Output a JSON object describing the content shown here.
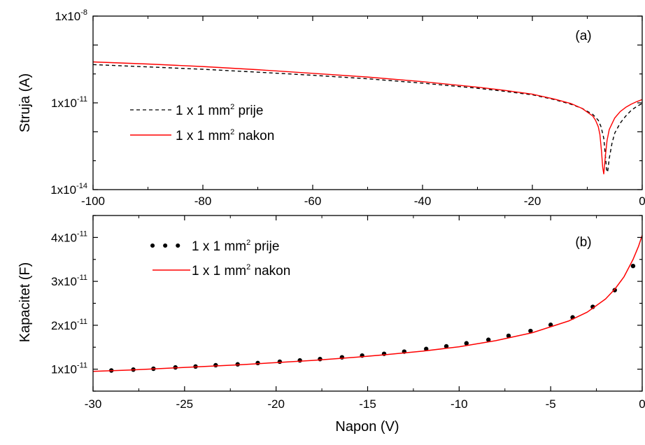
{
  "chart_data": [
    {
      "id": "a",
      "type": "line",
      "panel_label": "(a)",
      "ylabel": "Struja (A)",
      "yscale": "log",
      "xlim": [
        -100,
        0
      ],
      "ylim": [
        1e-14,
        1e-08
      ],
      "x_ticks": [
        "-100",
        "-80",
        "-60",
        "-40",
        "-20",
        "0"
      ],
      "y_ticks": [
        {
          "base": "1x10",
          "exp": "-8",
          "value": 1e-08
        },
        {
          "base": "1x10",
          "exp": "-11",
          "value": 1e-11
        },
        {
          "base": "1x10",
          "exp": "-14",
          "value": 1e-14
        }
      ],
      "legend_position": "left-middle",
      "series": [
        {
          "name_pre": "1 x 1 mm",
          "name_sup": "2",
          "name_post": " prije",
          "color": "#000000",
          "style": "dashed",
          "x": [
            -100,
            -90,
            -80,
            -70,
            -60,
            -50,
            -40,
            -30,
            -25,
            -20,
            -16,
            -13,
            -11,
            -9,
            -8,
            -7.5,
            -7,
            -6.7,
            -6.5,
            -6.3,
            -6,
            -5.5,
            -5,
            -4,
            -3,
            -2,
            -1,
            0
          ],
          "y": [
            2.1e-10,
            1.75e-10,
            1.45e-10,
            1.15e-10,
            9e-11,
            6.8e-11,
            4.8e-11,
            3.2e-11,
            2.5e-11,
            1.9e-11,
            1.3e-11,
            9e-12,
            6.5e-12,
            4e-12,
            2.5e-12,
            1.5e-12,
            6e-13,
            1.5e-13,
            5e-14,
            4e-14,
            1.2e-13,
            4e-13,
            9e-13,
            2e-12,
            3.5e-12,
            5.5e-12,
            7.5e-12,
            9.5e-12
          ]
        },
        {
          "name_pre": "1 x 1 mm",
          "name_sup": "2",
          "name_post": " nakon",
          "color": "#ff0000",
          "style": "solid",
          "x": [
            -100,
            -90,
            -80,
            -70,
            -60,
            -50,
            -40,
            -30,
            -25,
            -20,
            -16,
            -13,
            -11,
            -9,
            -8.5,
            -8,
            -7.7,
            -7.4,
            -7.2,
            -7,
            -6.7,
            -6.4,
            -6,
            -5,
            -4,
            -3,
            -2,
            -1,
            0
          ],
          "y": [
            2.6e-10,
            2.2e-10,
            1.8e-10,
            1.4e-10,
            1.05e-10,
            7.8e-11,
            5.4e-11,
            3.5e-11,
            2.7e-11,
            2e-11,
            1.35e-11,
            9.5e-12,
            6.5e-12,
            3.5e-12,
            2.5e-12,
            1.5e-12,
            8e-13,
            2e-13,
            6e-14,
            3.5e-14,
            1.5e-13,
            5e-13,
            1.2e-12,
            3e-12,
            5e-12,
            7e-12,
            9e-12,
            1.1e-11,
            1.3e-11
          ]
        }
      ]
    },
    {
      "id": "b",
      "type": "line",
      "panel_label": "(b)",
      "xlabel": "Napon (V)",
      "ylabel": "Kapacitet (F)",
      "xlim": [
        -30,
        0
      ],
      "ylim_label": "approx. 0.5e-11 to 4.5e-11",
      "x_ticks": [
        "-30",
        "-25",
        "-20",
        "-15",
        "-10",
        "-5",
        "0"
      ],
      "y_ticks": [
        {
          "base": "1x10",
          "exp": "-11",
          "value": 1e-11
        },
        {
          "base": "2x10",
          "exp": "-11",
          "value": 2e-11
        },
        {
          "base": "3x10",
          "exp": "-11",
          "value": 3e-11
        },
        {
          "base": "4x10",
          "exp": "-11",
          "value": 4e-11
        }
      ],
      "legend_position": "top-left",
      "series": [
        {
          "name_pre": "1 x 1 mm",
          "name_sup": "2",
          "name_post": " prije",
          "color": "#000000",
          "style": "dots",
          "x": [
            -29,
            -27.8,
            -26.7,
            -25.5,
            -24.4,
            -23.3,
            -22.1,
            -21,
            -19.8,
            -18.7,
            -17.6,
            -16.4,
            -15.3,
            -14.1,
            -13,
            -11.8,
            -10.7,
            -9.6,
            -8.4,
            -7.3,
            -6.1,
            -5,
            -3.8,
            -2.7,
            -1.5,
            -0.5
          ],
          "y": [
            9.7e-12,
            9.9e-12,
            1.01e-11,
            1.04e-11,
            1.06e-11,
            1.09e-11,
            1.11e-11,
            1.14e-11,
            1.17e-11,
            1.2e-11,
            1.23e-11,
            1.27e-11,
            1.31e-11,
            1.35e-11,
            1.4e-11,
            1.46e-11,
            1.52e-11,
            1.59e-11,
            1.67e-11,
            1.76e-11,
            1.87e-11,
            2.01e-11,
            2.18e-11,
            2.42e-11,
            2.8e-11,
            3.35e-11
          ]
        },
        {
          "name_pre": "1 x 1 mm",
          "name_sup": "2",
          "name_post": " nakon",
          "color": "#ff0000",
          "style": "solid",
          "x": [
            -30,
            -28,
            -26,
            -24,
            -22,
            -20,
            -18,
            -16,
            -14,
            -12,
            -10,
            -8,
            -6,
            -4,
            -3,
            -2,
            -1.5,
            -1,
            -0.5,
            -0.2,
            0
          ],
          "y": [
            9.5e-12,
            9.8e-12,
            1.02e-11,
            1.06e-11,
            1.1e-11,
            1.15e-11,
            1.2e-11,
            1.26e-11,
            1.33e-11,
            1.41e-11,
            1.51e-11,
            1.65e-11,
            1.83e-11,
            2.1e-11,
            2.3e-11,
            2.6e-11,
            2.82e-11,
            3.1e-11,
            3.5e-11,
            3.8e-11,
            4.05e-11
          ]
        }
      ]
    }
  ]
}
